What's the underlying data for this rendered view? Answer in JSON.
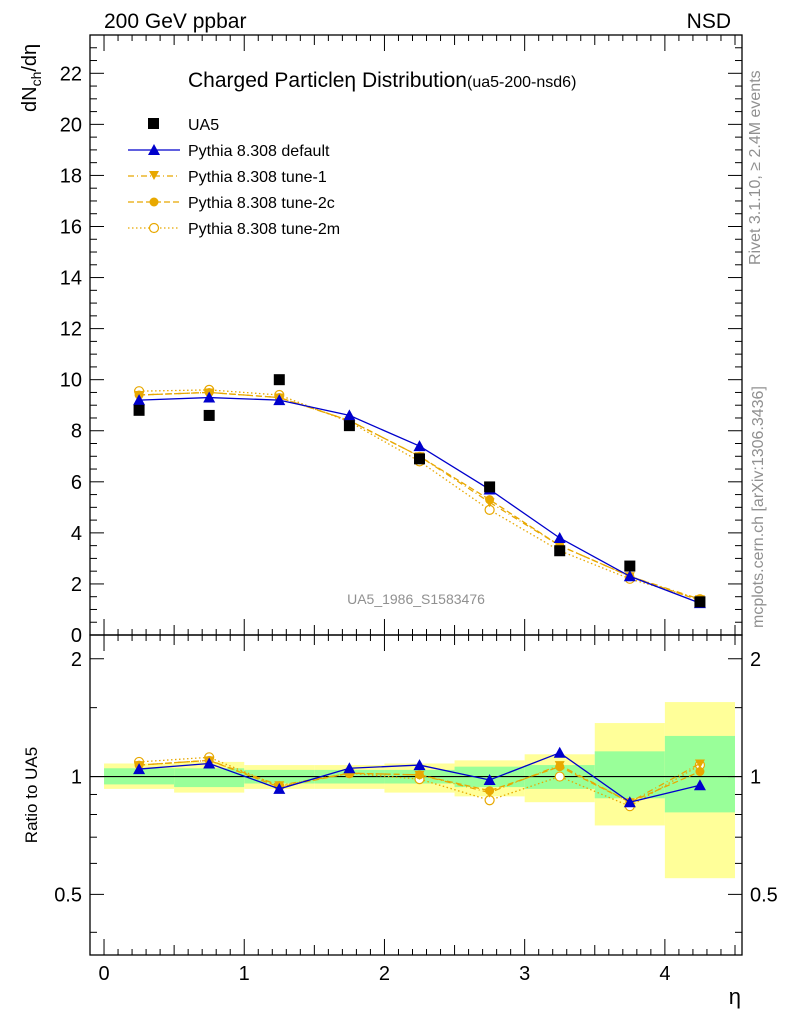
{
  "header": {
    "left": "200 GeV ppbar",
    "right": "NSD"
  },
  "side_labels": {
    "rivet": "Rivet 3.1.10, ≥ 2.4M events",
    "mcplots": "mcplots.cern.ch [arXiv:1306.3436]"
  },
  "chart_data": [
    {
      "type": "scatter",
      "panel": "main",
      "title": "Charged Particle",
      "title_symbol": "η",
      "title_rest": " Distribution",
      "title_tag": "(ua5-200-nsd6)",
      "watermark": "UA5_1986_S1583476",
      "ylabel_main": "dN",
      "ylabel_sub": "ch",
      "ylabel_rest": "/dη",
      "xlim": [
        -0.1,
        4.55
      ],
      "ylim": [
        0,
        23.5
      ],
      "y_ticks": [
        0,
        2,
        4,
        6,
        8,
        10,
        12,
        14,
        16,
        18,
        20,
        22
      ],
      "y_tick_labels": [
        "0",
        "2",
        "4",
        "6",
        "8",
        "10",
        "12",
        "14",
        "16",
        "18",
        "20",
        "22"
      ],
      "x": [
        0.25,
        0.75,
        1.25,
        1.75,
        2.25,
        2.75,
        3.25,
        3.75,
        4.25
      ],
      "series": [
        {
          "name": "UA5",
          "color": "#000000",
          "marker": "square",
          "line": "none",
          "values": [
            8.8,
            8.6,
            10.0,
            8.2,
            6.9,
            5.8,
            3.3,
            2.7,
            1.3
          ]
        },
        {
          "name": "Pythia 8.308 default",
          "color": "#0000cc",
          "marker": "triangle-up",
          "line": "solid",
          "values": [
            9.2,
            9.3,
            9.2,
            8.6,
            7.4,
            5.7,
            3.8,
            2.3,
            1.25
          ]
        },
        {
          "name": "Pythia 8.308 tune-1",
          "color": "#e8a800",
          "marker": "triangle-down",
          "line": "dashdot",
          "values": [
            9.4,
            9.5,
            9.3,
            8.4,
            7.0,
            5.2,
            3.5,
            2.3,
            1.4
          ]
        },
        {
          "name": "Pythia 8.308 tune-2c",
          "color": "#e8a800",
          "marker": "circle",
          "line": "dashed",
          "values": [
            9.4,
            9.5,
            9.3,
            8.4,
            7.0,
            5.3,
            3.5,
            2.3,
            1.35
          ]
        },
        {
          "name": "Pythia 8.308 tune-2m",
          "color": "#e8a800",
          "marker": "circle-open",
          "line": "dotted",
          "values": [
            9.55,
            9.6,
            9.4,
            8.35,
            6.8,
            4.9,
            3.3,
            2.2,
            1.4
          ]
        }
      ]
    },
    {
      "type": "scatter",
      "panel": "ratio",
      "ylabel": "Ratio to UA5",
      "xlabel": "η",
      "xlim": [
        -0.1,
        4.55
      ],
      "ylim": [
        0.35,
        2.3
      ],
      "x_ticks": [
        0,
        1,
        2,
        3,
        4
      ],
      "x_tick_labels": [
        "0",
        "1",
        "2",
        "3",
        "4"
      ],
      "y_ticks": [
        0.5,
        1,
        2
      ],
      "y_tick_labels": [
        "0.5",
        "1",
        "2"
      ],
      "bands": {
        "bins": [
          [
            0,
            0.5
          ],
          [
            0.5,
            1
          ],
          [
            1,
            1.5
          ],
          [
            1.5,
            2
          ],
          [
            2,
            2.5
          ],
          [
            2.5,
            3
          ],
          [
            3,
            3.5
          ],
          [
            3.5,
            4
          ],
          [
            4,
            4.5
          ]
        ],
        "inner": [
          [
            0.955,
            1.05
          ],
          [
            0.94,
            1.05
          ],
          [
            0.96,
            1.04
          ],
          [
            0.96,
            1.04
          ],
          [
            0.96,
            1.04
          ],
          [
            0.94,
            1.06
          ],
          [
            0.93,
            1.07
          ],
          [
            0.88,
            1.16
          ],
          [
            0.81,
            1.27
          ]
        ],
        "outer": [
          [
            0.93,
            1.08
          ],
          [
            0.91,
            1.09
          ],
          [
            0.93,
            1.07
          ],
          [
            0.93,
            1.07
          ],
          [
            0.91,
            1.08
          ],
          [
            0.89,
            1.1
          ],
          [
            0.86,
            1.14
          ],
          [
            0.75,
            1.37
          ],
          [
            0.55,
            1.55
          ]
        ]
      },
      "x": [
        0.25,
        0.75,
        1.25,
        1.75,
        2.25,
        2.75,
        3.25,
        3.75,
        4.25
      ],
      "series": [
        {
          "name": "Pythia 8.308 default",
          "values": [
            1.045,
            1.08,
            0.93,
            1.05,
            1.07,
            0.98,
            1.15,
            0.86,
            0.95
          ]
        },
        {
          "name": "Pythia 8.308 tune-1",
          "values": [
            1.07,
            1.1,
            0.95,
            1.02,
            1.01,
            0.91,
            1.07,
            0.86,
            1.08
          ]
        },
        {
          "name": "Pythia 8.308 tune-2c",
          "values": [
            1.07,
            1.1,
            0.94,
            1.02,
            1.01,
            0.92,
            1.06,
            0.86,
            1.03
          ]
        },
        {
          "name": "Pythia 8.308 tune-2m",
          "values": [
            1.09,
            1.12,
            0.945,
            1.02,
            0.985,
            0.87,
            1.0,
            0.84,
            1.07
          ]
        }
      ]
    }
  ]
}
